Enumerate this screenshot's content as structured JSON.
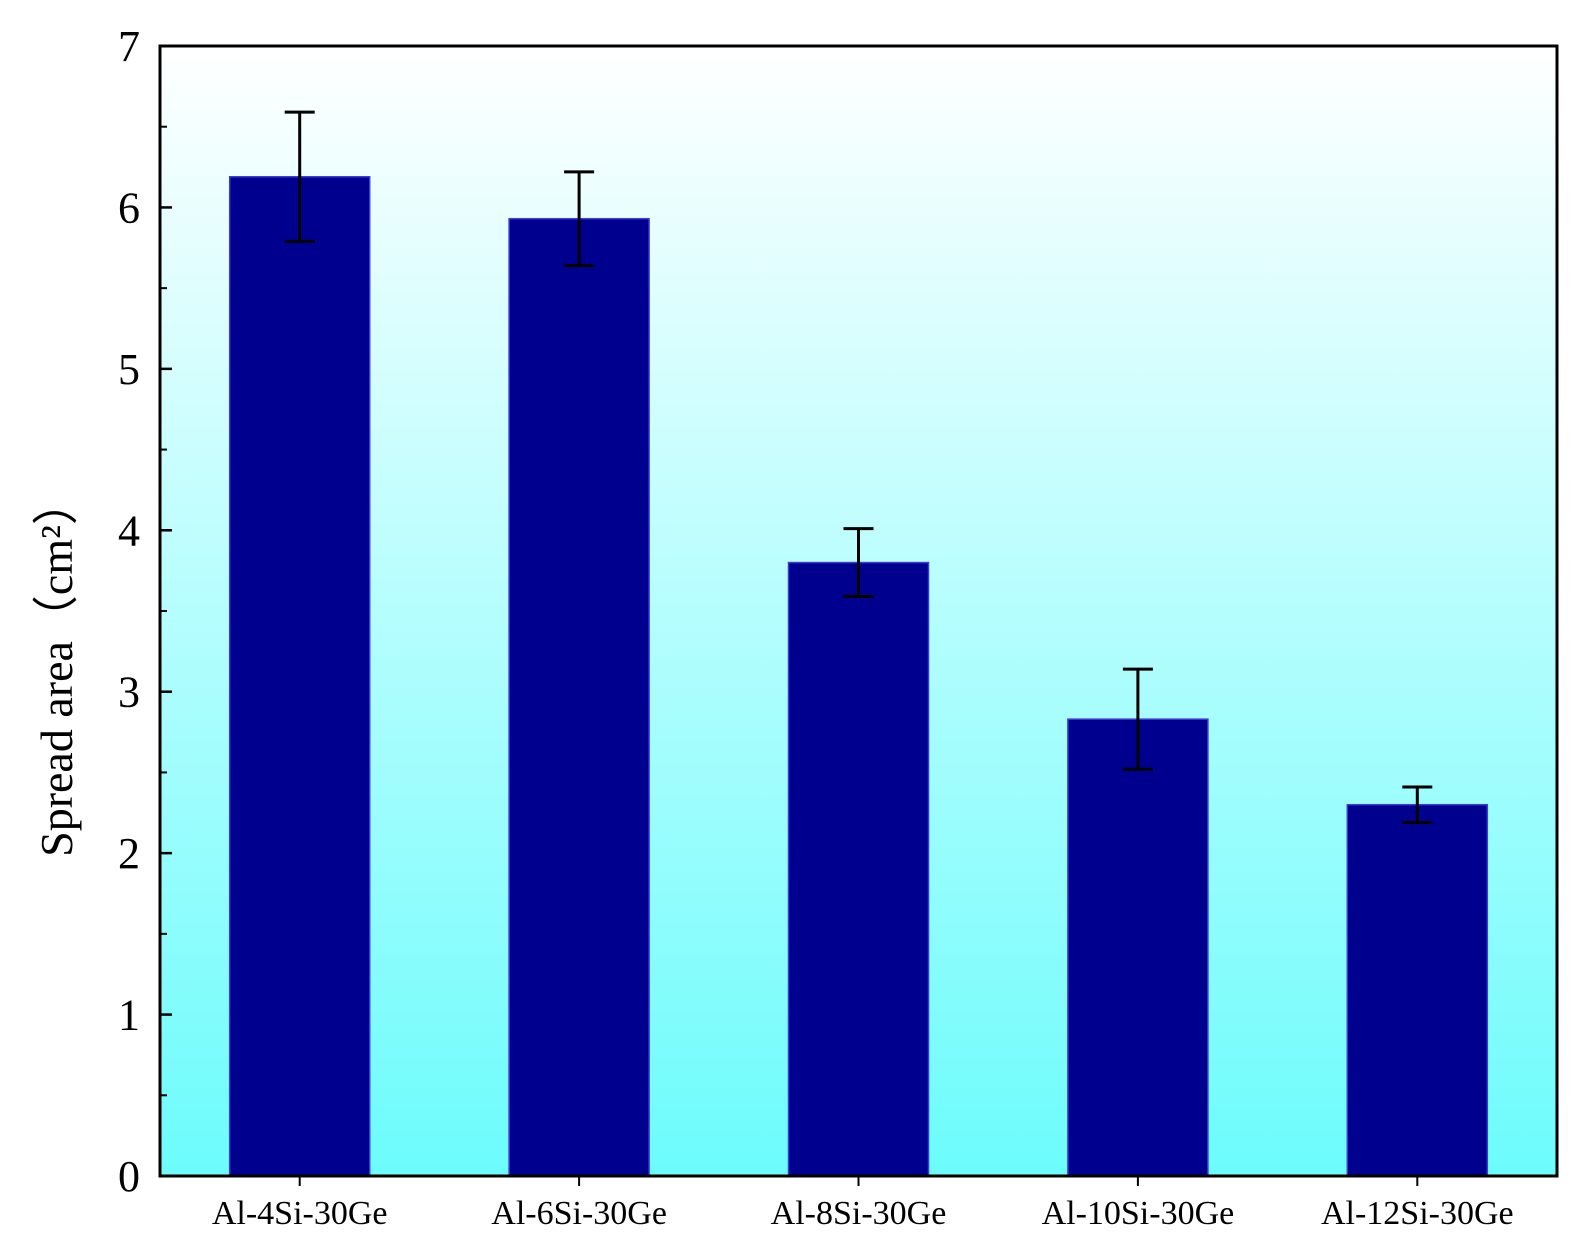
{
  "chart_data": {
    "type": "bar",
    "title": "",
    "xlabel": "",
    "ylabel": "Spread area（cm²）",
    "ylim": [
      0,
      7
    ],
    "yticks": [
      0,
      1,
      2,
      3,
      4,
      5,
      6,
      7
    ],
    "grid": false,
    "categories": [
      "Al-4Si-30Ge",
      "Al-6Si-30Ge",
      "Al-8Si-30Ge",
      "Al-10Si-30Ge",
      "Al-12Si-30Ge"
    ],
    "series": [
      {
        "values": [
          6.19,
          5.93,
          3.8,
          2.83,
          2.3
        ],
        "error": [
          0.4,
          0.29,
          0.21,
          0.31,
          0.11
        ]
      }
    ],
    "colors": {
      "bar": "#00008f",
      "bar_edge": "#3b3bd6",
      "background_top": "#ffffff",
      "background_bottom": "#6cfcfc",
      "axis": "#000000"
    }
  }
}
